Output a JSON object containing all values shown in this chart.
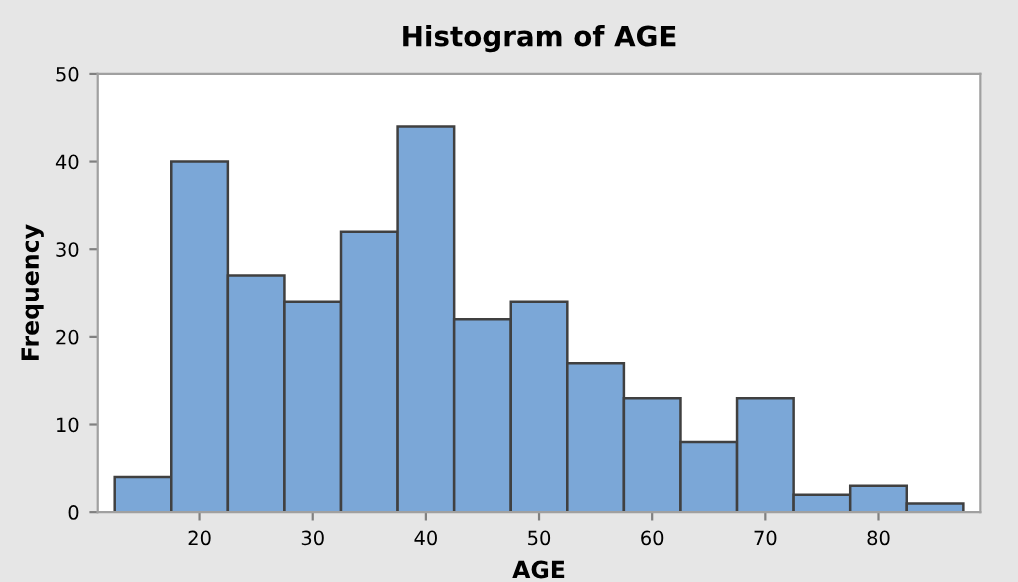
{
  "chart_data": {
    "type": "histogram",
    "title": "Histogram of AGE",
    "xlabel": "AGE",
    "ylabel": "Frequency",
    "bins": [
      12.5,
      17.5,
      22.5,
      27.5,
      32.5,
      37.5,
      42.5,
      47.5,
      52.5,
      57.5,
      62.5,
      67.5,
      72.5,
      77.5,
      82.5,
      87.5
    ],
    "values": [
      4,
      40,
      27,
      24,
      32,
      44,
      22,
      24,
      17,
      13,
      8,
      13,
      2,
      3,
      1
    ],
    "color": "#7ba7d7",
    "xlim": [
      11,
      89
    ],
    "xticks": [
      20,
      30,
      40,
      50,
      60,
      70,
      80
    ],
    "ylim": [
      0,
      50
    ],
    "yticks": [
      0,
      10,
      20,
      30,
      40,
      50
    ],
    "grid": false
  }
}
